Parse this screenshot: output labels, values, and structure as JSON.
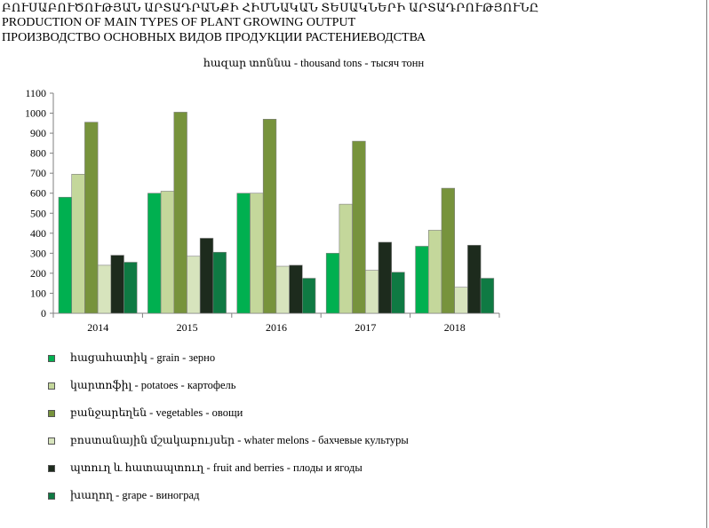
{
  "header": {
    "title_hy": "ԲՈՒՍԱԲՈՒԾՈՒԹՅԱՆ ԱՐՏԱԴՐԱՆՔԻ ՀԻՄՆԱԿԱՆ ՏԵՍԱԿՆԵՐԻ ԱՐՏԱԴՐՈՒԹՅՈՒՆԸ",
    "title_en": "PRODUCTION OF MAIN TYPES OF PLANT GROWING OUTPUT",
    "title_ru": "ПРОИЗВОДСТВО ОСНОВНЫХ ВИДОВ ПРОДУКЦИИ  РАСТЕНИЕВОДСТВА"
  },
  "chart_data": {
    "type": "bar",
    "subtitle": "հազար տոննա - thousand tons - тысяч тонн",
    "categories": [
      "2014",
      "2015",
      "2016",
      "2017",
      "2018"
    ],
    "ylim": [
      0,
      1100
    ],
    "yticks": [
      "0",
      "100",
      "200",
      "300",
      "400",
      "500",
      "600",
      "700",
      "800",
      "900",
      "1000",
      "1100"
    ],
    "grid": false,
    "legend_position": "bottom",
    "series": [
      {
        "name": "հացահատիկ - grain - зерно",
        "color": "#00b050",
        "values": [
          580,
          600,
          600,
          300,
          335
        ]
      },
      {
        "name": "կարտոֆիլ - potatoes - картофель",
        "color": "#c4d79b",
        "values": [
          695,
          610,
          600,
          545,
          415
        ]
      },
      {
        "name": "բանջարեղեն - vegetables - овощи",
        "color": "#77933c",
        "values": [
          955,
          1005,
          970,
          860,
          625
        ]
      },
      {
        "name": "բոստանային մշակաբույսեր - whater melons - бахчевые культуры",
        "color": "#d7e4bd",
        "values": [
          240,
          285,
          235,
          215,
          130
        ]
      },
      {
        "name": "պտուղ և հատապտուղ - fruit and berries - плоды и ягоды",
        "color": "#1d2b1d",
        "values": [
          290,
          375,
          240,
          355,
          340
        ]
      },
      {
        "name": "խաղող - grape - виноград",
        "color": "#0f7a43",
        "values": [
          255,
          305,
          175,
          205,
          175
        ]
      }
    ]
  }
}
